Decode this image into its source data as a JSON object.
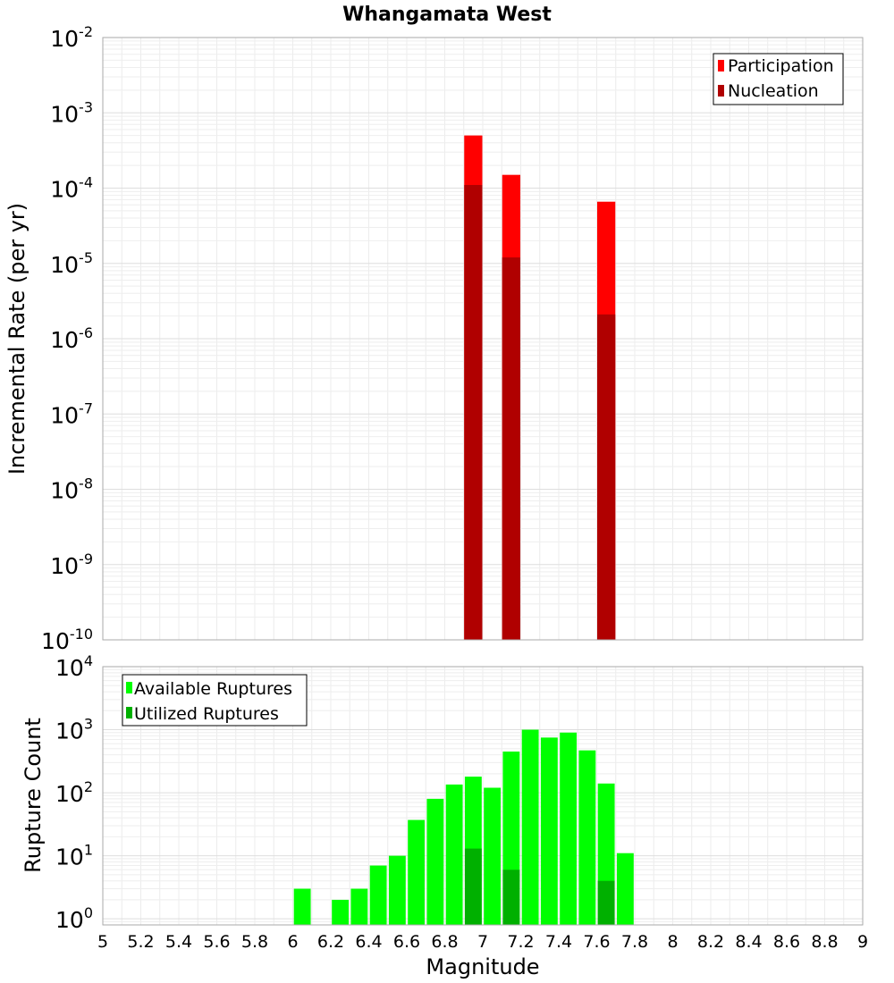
{
  "chart_data": [
    {
      "type": "bar",
      "title": "Whangamata West",
      "ylabel": "Incremental Rate (per yr)",
      "yscale": "log",
      "ylim": [
        1e-10,
        0.01
      ],
      "xlim": [
        5,
        9
      ],
      "bin_width": 0.1,
      "y_ticks": [
        {
          "base": "10",
          "exp": "-2"
        },
        {
          "base": "10",
          "exp": "-3"
        },
        {
          "base": "10",
          "exp": "-4"
        },
        {
          "base": "10",
          "exp": "-5"
        },
        {
          "base": "10",
          "exp": "-6"
        },
        {
          "base": "10",
          "exp": "-7"
        },
        {
          "base": "10",
          "exp": "-8"
        },
        {
          "base": "10",
          "exp": "-9"
        },
        {
          "base": "10",
          "exp": "-10"
        }
      ],
      "legend_position": "top-right",
      "series": [
        {
          "name": "Participation",
          "color": "#ff0000",
          "points": [
            {
              "x": 6.95,
              "y": 0.0005
            },
            {
              "x": 7.15,
              "y": 0.00015
            },
            {
              "x": 7.65,
              "y": 6.6e-05
            }
          ]
        },
        {
          "name": "Nucleation",
          "color": "#b00000",
          "points": [
            {
              "x": 6.95,
              "y": 0.00011
            },
            {
              "x": 7.15,
              "y": 1.2e-05
            },
            {
              "x": 7.65,
              "y": 2.1e-06
            }
          ]
        }
      ]
    },
    {
      "type": "bar",
      "xlabel": "Magnitude",
      "ylabel": "Rupture Count",
      "yscale": "log",
      "ylim": [
        0.8,
        10000
      ],
      "xlim": [
        5,
        9
      ],
      "bin_width": 0.1,
      "x_ticks": [
        "5",
        "5.2",
        "5.4",
        "5.6",
        "5.8",
        "6",
        "6.2",
        "6.4",
        "6.6",
        "6.8",
        "7",
        "7.2",
        "7.4",
        "7.6",
        "7.8",
        "8",
        "8.2",
        "8.4",
        "8.6",
        "8.8",
        "9"
      ],
      "y_ticks": [
        {
          "base": "10",
          "exp": "4"
        },
        {
          "base": "10",
          "exp": "3"
        },
        {
          "base": "10",
          "exp": "2"
        },
        {
          "base": "10",
          "exp": "1"
        },
        {
          "base": "10",
          "exp": "0"
        }
      ],
      "legend_position": "top-left",
      "series": [
        {
          "name": "Available Ruptures",
          "color": "#00ff00",
          "points": [
            {
              "x": 6.05,
              "y": 3
            },
            {
              "x": 6.25,
              "y": 2
            },
            {
              "x": 6.35,
              "y": 3
            },
            {
              "x": 6.45,
              "y": 7
            },
            {
              "x": 6.55,
              "y": 10
            },
            {
              "x": 6.65,
              "y": 37
            },
            {
              "x": 6.75,
              "y": 80
            },
            {
              "x": 6.85,
              "y": 135
            },
            {
              "x": 6.95,
              "y": 180
            },
            {
              "x": 7.05,
              "y": 120
            },
            {
              "x": 7.15,
              "y": 450
            },
            {
              "x": 7.25,
              "y": 1000
            },
            {
              "x": 7.35,
              "y": 750
            },
            {
              "x": 7.45,
              "y": 900
            },
            {
              "x": 7.55,
              "y": 470
            },
            {
              "x": 7.65,
              "y": 140
            },
            {
              "x": 7.75,
              "y": 11
            }
          ]
        },
        {
          "name": "Utilized Ruptures",
          "color": "#00b000",
          "points": [
            {
              "x": 6.95,
              "y": 13
            },
            {
              "x": 7.15,
              "y": 6
            },
            {
              "x": 7.65,
              "y": 4
            }
          ]
        }
      ]
    }
  ]
}
